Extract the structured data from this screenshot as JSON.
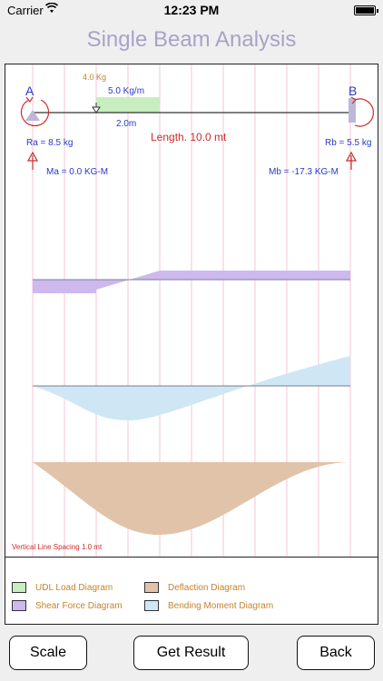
{
  "status_bar": {
    "carrier": "Carrier",
    "time": "12:23 PM"
  },
  "title": "Single Beam Analysis",
  "beam": {
    "label_a": "A",
    "label_b": "B",
    "point_load": "4.0 Kg",
    "udl": "5.0 Kg/m",
    "udl_start": "2.0m",
    "length": "Length. 10.0 mt",
    "reaction_a": "Ra = 8.5 kg",
    "reaction_b": "Rb = 5.5 kg",
    "moment_a": "Ma = 0.0 KG-M",
    "moment_b": "Mb = -17.3 KG-M",
    "spacing_note": "Vertical Line Spacing 1.0 mt"
  },
  "legend": {
    "udl": "UDL Load Diagram",
    "shear": "Shear Force Diagram",
    "deflection": "Deflaction Diagram",
    "bending": "Bending Moment Diagram"
  },
  "colors": {
    "udl": "#c8eec0",
    "shear": "#cdb9ee",
    "deflection": "#e1c3a9",
    "bending": "#cfe6f4",
    "title": "#a8a3c8",
    "reaction": "#cc2b2b",
    "label_blue": "#2a38c8",
    "load_orange": "#c4832c"
  },
  "buttons": {
    "scale": "Scale",
    "get_result": "Get Result",
    "back": "Back"
  }
}
